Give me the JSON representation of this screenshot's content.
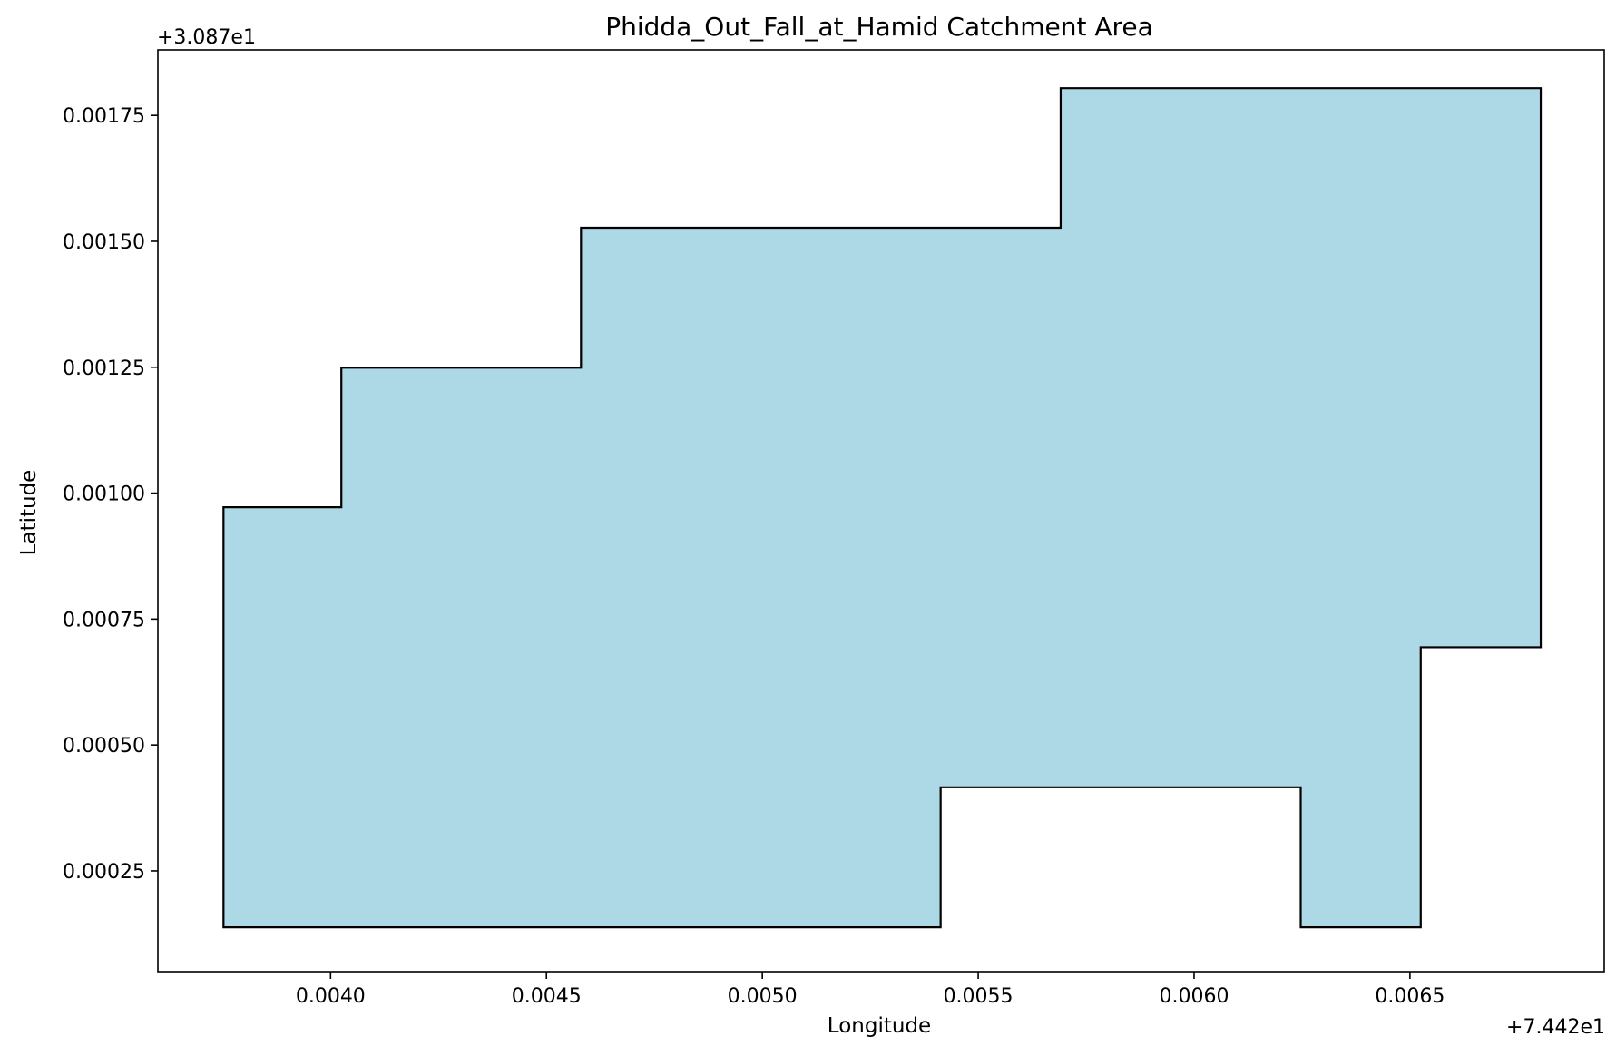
{
  "chart_data": {
    "type": "area",
    "title": "Phidda_Out_Fall_at_Hamid Catchment Area",
    "xlabel": "Longitude",
    "ylabel": "Latitude",
    "x_offset_label": "+7.442e1",
    "y_offset_label": "+3.087e1",
    "xlim": [
      0.0036,
      0.00695
    ],
    "ylim": [
      5e-05,
      0.00188
    ],
    "xticks": [
      0.004,
      0.0045,
      0.005,
      0.0055,
      0.006,
      0.0065
    ],
    "xtick_labels": [
      "0.0040",
      "0.0045",
      "0.0050",
      "0.0055",
      "0.0060",
      "0.0065"
    ],
    "yticks": [
      0.00025,
      0.0005,
      0.00075,
      0.001,
      0.00125,
      0.0015,
      0.00175
    ],
    "ytick_labels": [
      "0.00025",
      "0.00050",
      "0.00075",
      "0.00100",
      "0.00125",
      "0.00150",
      "0.00175"
    ],
    "grid": false,
    "fill_color": "#add8e6",
    "edge_color": "#000000",
    "polygon": {
      "x": [
        0.003752,
        0.005413,
        0.005413,
        0.006247,
        0.006247,
        0.006525,
        0.006525,
        0.006803,
        0.006803,
        0.005691,
        0.005691,
        0.00458,
        0.00458,
        0.004025,
        0.004025,
        0.003752,
        0.003752
      ],
      "y": [
        0.000138,
        0.000138,
        0.000416,
        0.000416,
        0.000138,
        0.000138,
        0.000694,
        0.000694,
        0.001804,
        0.001804,
        0.001527,
        0.001527,
        0.001249,
        0.001249,
        0.000972,
        0.000972,
        0.000138
      ]
    }
  }
}
